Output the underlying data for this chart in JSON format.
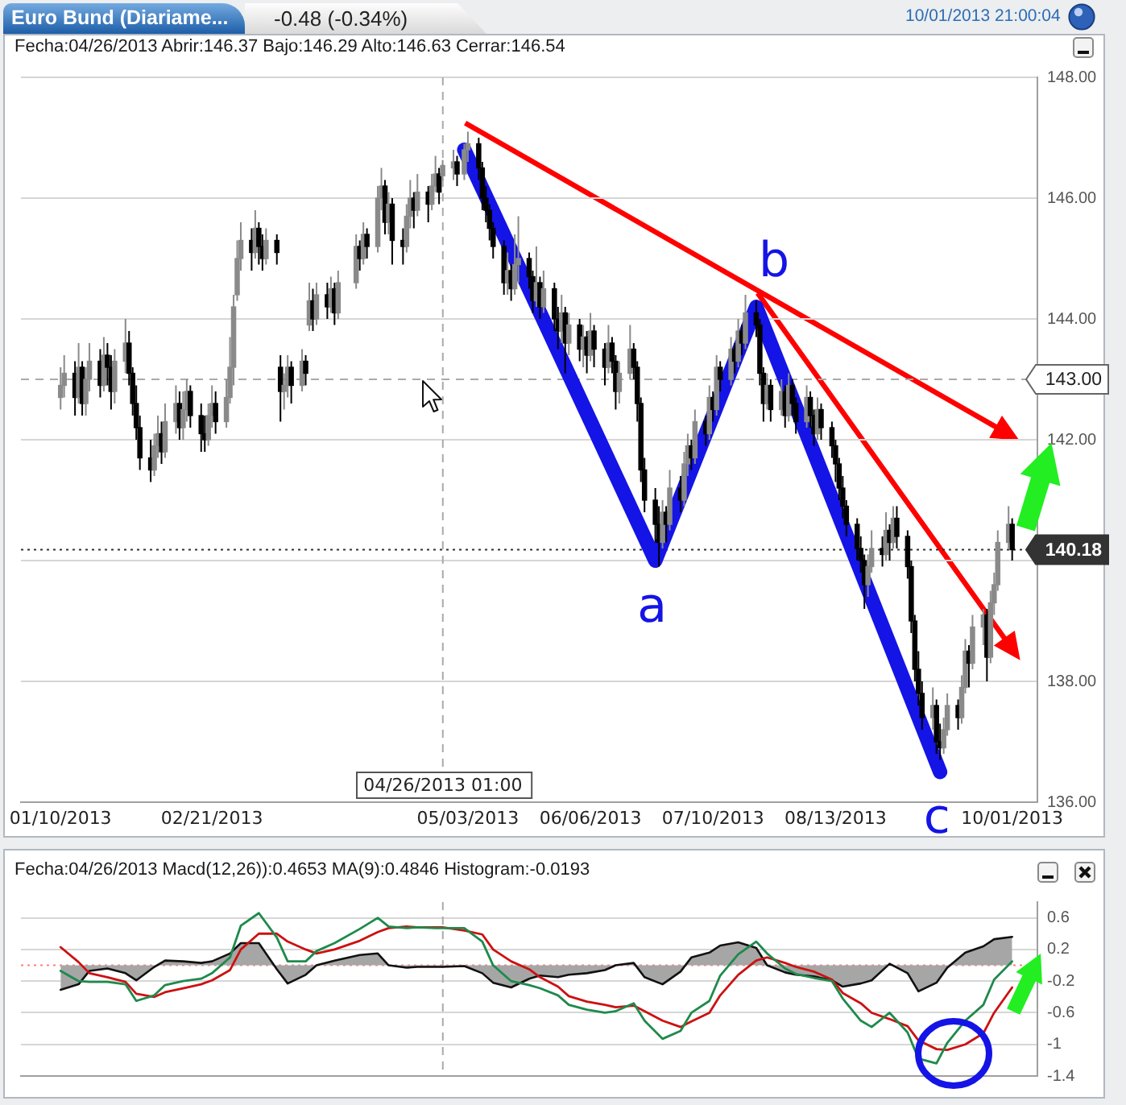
{
  "chart_data": [
    {
      "type": "candlestick",
      "title": "Euro Bund (Diariame...",
      "subtitle": "Fecha:04/26/2013 Abrir:146.37 Bajo:146.29 Alto:146.63 Cerrar:146.54",
      "annotations": [
        "-0.48 (-0.34%)",
        "10/01/2013 21:00:04",
        {
          "text": "a",
          "x": "2013-06-24",
          "y": 140.0
        },
        {
          "text": "b",
          "x": "2013-07-22",
          "y": 144.2
        },
        {
          "text": "c",
          "x": "2013-09-11",
          "y": 136.5
        }
      ],
      "x": [
        "2013-01-10",
        "2013-01-11",
        "2013-01-14",
        "2013-01-15",
        "2013-01-16",
        "2013-01-17",
        "2013-01-18",
        "2013-01-21",
        "2013-01-22",
        "2013-01-23",
        "2013-01-24",
        "2013-01-25",
        "2013-01-28",
        "2013-01-29",
        "2013-01-30",
        "2013-01-31",
        "2013-02-01",
        "2013-02-04",
        "2013-02-05",
        "2013-02-06",
        "2013-02-07",
        "2013-02-08",
        "2013-02-11",
        "2013-02-12",
        "2013-02-13",
        "2013-02-14",
        "2013-02-15",
        "2013-02-18",
        "2013-02-19",
        "2013-02-20",
        "2013-02-21",
        "2013-02-22",
        "2013-02-25",
        "2013-02-26",
        "2013-02-27",
        "2013-02-28",
        "2013-03-01",
        "2013-03-04",
        "2013-03-05",
        "2013-03-06",
        "2013-03-07",
        "2013-03-08",
        "2013-03-11",
        "2013-03-12",
        "2013-03-13",
        "2013-03-14",
        "2013-03-15",
        "2013-03-18",
        "2013-03-19",
        "2013-03-20",
        "2013-03-21",
        "2013-03-22",
        "2013-03-25",
        "2013-03-26",
        "2013-03-27",
        "2013-03-28",
        "2013-04-02",
        "2013-04-03",
        "2013-04-04",
        "2013-04-05",
        "2013-04-08",
        "2013-04-09",
        "2013-04-10",
        "2013-04-11",
        "2013-04-12",
        "2013-04-15",
        "2013-04-16",
        "2013-04-17",
        "2013-04-18",
        "2013-04-19",
        "2013-04-22",
        "2013-04-23",
        "2013-04-24",
        "2013-04-25",
        "2013-04-26",
        "2013-04-29",
        "2013-04-30",
        "2013-05-02",
        "2013-05-03",
        "2013-05-06",
        "2013-05-07",
        "2013-05-08",
        "2013-05-09",
        "2013-05-10",
        "2013-05-13",
        "2013-05-14",
        "2013-05-15",
        "2013-05-16",
        "2013-05-17",
        "2013-05-20",
        "2013-05-21",
        "2013-05-22",
        "2013-05-23",
        "2013-05-24",
        "2013-05-27",
        "2013-05-28",
        "2013-05-29",
        "2013-05-30",
        "2013-05-31",
        "2013-06-03",
        "2013-06-04",
        "2013-06-05",
        "2013-06-06",
        "2013-06-07",
        "2013-06-10",
        "2013-06-11",
        "2013-06-12",
        "2013-06-13",
        "2013-06-14",
        "2013-06-17",
        "2013-06-18",
        "2013-06-19",
        "2013-06-20",
        "2013-06-21",
        "2013-06-24",
        "2013-06-25",
        "2013-06-26",
        "2013-06-27",
        "2013-06-28",
        "2013-07-01",
        "2013-07-02",
        "2013-07-03",
        "2013-07-04",
        "2013-07-05",
        "2013-07-08",
        "2013-07-09",
        "2013-07-10",
        "2013-07-11",
        "2013-07-12",
        "2013-07-15",
        "2013-07-16",
        "2013-07-17",
        "2013-07-18",
        "2013-07-19",
        "2013-07-22",
        "2013-07-23",
        "2013-07-24",
        "2013-07-25",
        "2013-07-26",
        "2013-07-29",
        "2013-07-30",
        "2013-07-31",
        "2013-08-01",
        "2013-08-02",
        "2013-08-05",
        "2013-08-06",
        "2013-08-07",
        "2013-08-08",
        "2013-08-09",
        "2013-08-12",
        "2013-08-13",
        "2013-08-14",
        "2013-08-15",
        "2013-08-16",
        "2013-08-19",
        "2013-08-20",
        "2013-08-21",
        "2013-08-22",
        "2013-08-23",
        "2013-08-26",
        "2013-08-27",
        "2013-08-28",
        "2013-08-29",
        "2013-08-30",
        "2013-09-02",
        "2013-09-03",
        "2013-09-04",
        "2013-09-05",
        "2013-09-06",
        "2013-09-09",
        "2013-09-10",
        "2013-09-11",
        "2013-09-12",
        "2013-09-13",
        "2013-09-16",
        "2013-09-17",
        "2013-09-18",
        "2013-09-19",
        "2013-09-20",
        "2013-09-23",
        "2013-09-24",
        "2013-09-25",
        "2013-09-26",
        "2013-09-27",
        "2013-09-30",
        "2013-10-01"
      ],
      "ohlc": [
        [
          142.7,
          143.2,
          142.5,
          142.9
        ],
        [
          142.9,
          143.4,
          142.7,
          143.1
        ],
        [
          143.1,
          143.3,
          142.4,
          142.7
        ],
        [
          142.7,
          143.6,
          142.6,
          143.2
        ],
        [
          143.2,
          143.3,
          142.4,
          142.6
        ],
        [
          142.6,
          143.2,
          142.4,
          143.0
        ],
        [
          143.0,
          143.6,
          142.8,
          143.3
        ],
        [
          143.3,
          143.5,
          142.7,
          142.9
        ],
        [
          142.9,
          143.7,
          142.8,
          143.4
        ],
        [
          143.4,
          143.6,
          142.9,
          143.2
        ],
        [
          143.2,
          143.4,
          142.5,
          142.8
        ],
        [
          142.8,
          143.5,
          142.6,
          143.3
        ],
        [
          143.3,
          144.0,
          143.1,
          143.6
        ],
        [
          143.6,
          143.8,
          142.9,
          143.1
        ],
        [
          143.1,
          143.2,
          142.4,
          142.6
        ],
        [
          142.6,
          142.9,
          142.0,
          142.2
        ],
        [
          142.2,
          142.4,
          141.5,
          141.7
        ],
        [
          141.7,
          142.0,
          141.3,
          141.5
        ],
        [
          141.5,
          142.1,
          141.4,
          141.9
        ],
        [
          141.9,
          142.4,
          141.7,
          142.1
        ],
        [
          142.1,
          142.3,
          141.6,
          141.8
        ],
        [
          141.8,
          142.6,
          141.7,
          142.3
        ],
        [
          142.3,
          142.9,
          142.1,
          142.6
        ],
        [
          142.6,
          142.8,
          142.0,
          142.2
        ],
        [
          142.2,
          142.8,
          142.0,
          142.5
        ],
        [
          142.5,
          143.0,
          142.3,
          142.8
        ],
        [
          142.8,
          142.9,
          142.2,
          142.4
        ],
        [
          142.4,
          142.6,
          141.8,
          142.1
        ],
        [
          142.1,
          142.4,
          141.8,
          142.0
        ],
        [
          142.0,
          142.6,
          141.9,
          142.4
        ],
        [
          142.4,
          142.9,
          142.2,
          142.6
        ],
        [
          142.6,
          142.8,
          142.1,
          142.3
        ],
        [
          142.3,
          143.0,
          142.2,
          142.7
        ],
        [
          142.7,
          143.7,
          142.6,
          143.2
        ],
        [
          143.2,
          144.4,
          142.9,
          144.2
        ],
        [
          144.4,
          145.3,
          144.3,
          145.0
        ],
        [
          145.0,
          145.6,
          144.8,
          145.3
        ],
        [
          145.3,
          145.5,
          144.8,
          145.1
        ],
        [
          145.1,
          145.8,
          145.0,
          145.5
        ],
        [
          145.5,
          145.6,
          144.9,
          145.2
        ],
        [
          145.2,
          145.4,
          144.8,
          145.0
        ],
        [
          145.0,
          145.5,
          144.9,
          145.3
        ],
        [
          145.3,
          145.4,
          144.9,
          145.1
        ],
        [
          143.2,
          143.4,
          142.3,
          142.8
        ],
        [
          142.8,
          143.1,
          142.5,
          142.9
        ],
        [
          142.9,
          143.4,
          142.7,
          143.2
        ],
        [
          143.2,
          143.3,
          142.6,
          142.9
        ],
        [
          142.9,
          143.5,
          142.8,
          143.3
        ],
        [
          143.3,
          143.4,
          142.9,
          143.1
        ],
        [
          143.9,
          144.6,
          143.8,
          144.3
        ],
        [
          144.3,
          144.5,
          143.8,
          144.0
        ],
        [
          144.0,
          144.6,
          143.9,
          144.4
        ],
        [
          144.4,
          144.6,
          144.0,
          144.2
        ],
        [
          144.2,
          144.7,
          144.1,
          144.5
        ],
        [
          144.5,
          144.6,
          143.9,
          144.1
        ],
        [
          144.1,
          144.8,
          144.0,
          144.6
        ],
        [
          144.6,
          145.4,
          144.5,
          145.2
        ],
        [
          145.2,
          145.3,
          144.8,
          145.0
        ],
        [
          145.0,
          145.6,
          144.9,
          145.4
        ],
        [
          145.4,
          145.5,
          145.0,
          145.2
        ],
        [
          145.2,
          146.2,
          145.1,
          146.0
        ],
        [
          146.0,
          146.5,
          145.8,
          146.2
        ],
        [
          146.2,
          146.3,
          145.4,
          145.6
        ],
        [
          145.6,
          146.1,
          145.4,
          145.9
        ],
        [
          145.9,
          146.0,
          144.9,
          145.3
        ],
        [
          145.3,
          145.5,
          144.9,
          145.2
        ],
        [
          145.2,
          145.9,
          145.1,
          145.7
        ],
        [
          145.7,
          146.3,
          145.5,
          146.0
        ],
        [
          146.0,
          146.1,
          145.5,
          145.8
        ],
        [
          145.8,
          146.4,
          145.7,
          146.1
        ],
        [
          146.1,
          146.2,
          145.6,
          145.9
        ],
        [
          145.9,
          146.4,
          145.8,
          146.2
        ],
        [
          146.2,
          146.7,
          146.1,
          146.4
        ],
        [
          146.4,
          146.5,
          145.9,
          146.1
        ],
        [
          146.37,
          146.63,
          146.29,
          146.54
        ],
        [
          146.5,
          146.8,
          146.3,
          146.6
        ],
        [
          146.6,
          146.7,
          146.2,
          146.4
        ],
        [
          146.4,
          146.9,
          146.3,
          146.8
        ],
        [
          146.8,
          147.1,
          146.6,
          146.9
        ],
        [
          146.9,
          147.0,
          146.3,
          146.5
        ],
        [
          146.5,
          146.6,
          145.8,
          146.0
        ],
        [
          146.0,
          146.2,
          145.6,
          145.8
        ],
        [
          145.8,
          145.9,
          145.3,
          145.5
        ],
        [
          145.5,
          145.6,
          145.0,
          145.2
        ],
        [
          145.2,
          145.3,
          144.4,
          144.6
        ],
        [
          144.6,
          145.1,
          144.4,
          144.8
        ],
        [
          144.8,
          144.9,
          144.3,
          144.5
        ],
        [
          144.5,
          145.4,
          144.4,
          144.9
        ],
        [
          144.9,
          145.7,
          144.6,
          145.0
        ],
        [
          145.0,
          145.1,
          144.5,
          144.7
        ],
        [
          144.7,
          144.8,
          144.1,
          144.3
        ],
        [
          144.3,
          145.2,
          144.2,
          144.6
        ],
        [
          144.6,
          144.7,
          144.0,
          144.2
        ],
        [
          144.2,
          144.8,
          144.1,
          144.5
        ],
        [
          144.5,
          144.6,
          143.8,
          144.0
        ],
        [
          144.0,
          144.2,
          143.5,
          143.8
        ],
        [
          143.8,
          144.4,
          143.6,
          144.1
        ],
        [
          144.1,
          144.2,
          143.1,
          143.6
        ],
        [
          143.6,
          144.1,
          143.4,
          143.9
        ],
        [
          143.9,
          144.0,
          143.3,
          143.5
        ],
        [
          143.5,
          143.9,
          143.2,
          143.7
        ],
        [
          143.7,
          143.8,
          143.1,
          143.4
        ],
        [
          143.4,
          144.1,
          143.3,
          143.8
        ],
        [
          143.8,
          143.9,
          143.2,
          143.5
        ],
        [
          143.5,
          143.6,
          142.9,
          143.2
        ],
        [
          143.2,
          143.9,
          143.1,
          143.6
        ],
        [
          143.6,
          143.7,
          143.1,
          143.3
        ],
        [
          143.3,
          143.4,
          142.5,
          142.8
        ],
        [
          142.8,
          143.3,
          142.6,
          143.1
        ],
        [
          143.1,
          143.9,
          143.0,
          143.5
        ],
        [
          143.5,
          143.6,
          143.0,
          143.2
        ],
        [
          143.2,
          143.3,
          142.3,
          142.6
        ],
        [
          142.6,
          142.7,
          141.3,
          141.5
        ],
        [
          141.5,
          141.7,
          140.8,
          141.0
        ],
        [
          141.0,
          141.2,
          140.3,
          140.6
        ],
        [
          140.6,
          140.9,
          139.9,
          140.3
        ],
        [
          140.3,
          141.0,
          140.2,
          140.8
        ],
        [
          140.8,
          140.9,
          140.3,
          140.6
        ],
        [
          140.6,
          141.5,
          140.5,
          141.2
        ],
        [
          141.2,
          141.4,
          140.8,
          141.0
        ],
        [
          141.0,
          141.8,
          140.9,
          141.6
        ],
        [
          141.6,
          142.1,
          141.4,
          141.9
        ],
        [
          141.9,
          142.0,
          141.5,
          141.7
        ],
        [
          141.7,
          142.5,
          141.6,
          142.3
        ],
        [
          142.3,
          142.4,
          141.9,
          142.1
        ],
        [
          142.1,
          142.9,
          142.0,
          142.7
        ],
        [
          142.7,
          142.8,
          142.3,
          142.5
        ],
        [
          142.5,
          143.4,
          142.4,
          143.2
        ],
        [
          143.2,
          143.3,
          142.8,
          143.0
        ],
        [
          143.0,
          143.7,
          142.9,
          143.5
        ],
        [
          143.5,
          143.6,
          143.1,
          143.3
        ],
        [
          143.3,
          144.0,
          143.2,
          143.8
        ],
        [
          143.8,
          143.9,
          143.4,
          143.6
        ],
        [
          143.6,
          144.4,
          143.5,
          144.1
        ],
        [
          144.1,
          144.3,
          143.7,
          143.9
        ],
        [
          143.9,
          144.0,
          142.9,
          143.1
        ],
        [
          143.1,
          143.2,
          142.3,
          142.6
        ],
        [
          142.6,
          143.1,
          142.5,
          142.9
        ],
        [
          142.9,
          143.0,
          142.3,
          142.5
        ],
        [
          142.5,
          143.0,
          142.4,
          142.8
        ],
        [
          142.8,
          142.9,
          142.2,
          142.4
        ],
        [
          142.4,
          143.1,
          142.3,
          142.9
        ],
        [
          142.9,
          143.0,
          142.4,
          142.6
        ],
        [
          142.6,
          142.7,
          142.1,
          142.3
        ],
        [
          142.3,
          142.9,
          142.2,
          142.7
        ],
        [
          142.7,
          142.8,
          142.2,
          142.4
        ],
        [
          142.4,
          142.5,
          141.9,
          142.1
        ],
        [
          142.1,
          142.7,
          142.0,
          142.5
        ],
        [
          142.5,
          142.6,
          142.0,
          142.2
        ],
        [
          142.2,
          142.3,
          141.7,
          141.9
        ],
        [
          141.9,
          142.0,
          141.3,
          141.6
        ],
        [
          141.6,
          141.7,
          141.0,
          141.2
        ],
        [
          141.2,
          141.4,
          140.7,
          140.9
        ],
        [
          140.9,
          141.0,
          140.4,
          140.6
        ],
        [
          140.6,
          140.7,
          140.0,
          140.2
        ],
        [
          140.2,
          140.4,
          139.8,
          140.0
        ],
        [
          140.0,
          140.1,
          139.2,
          139.6
        ],
        [
          139.6,
          140.1,
          139.4,
          139.9
        ],
        [
          139.9,
          140.5,
          139.8,
          140.2
        ],
        [
          140.2,
          140.4,
          139.9,
          140.1
        ],
        [
          140.1,
          140.8,
          140.0,
          140.5
        ],
        [
          140.5,
          140.6,
          140.0,
          140.3
        ],
        [
          140.3,
          140.9,
          140.2,
          140.7
        ],
        [
          140.7,
          140.9,
          140.2,
          140.4
        ],
        [
          140.4,
          140.5,
          139.7,
          139.9
        ],
        [
          139.9,
          140.0,
          138.8,
          139.0
        ],
        [
          139.0,
          139.1,
          138.0,
          138.2
        ],
        [
          138.2,
          138.5,
          137.6,
          137.8
        ],
        [
          137.8,
          138.0,
          137.2,
          137.4
        ],
        [
          137.4,
          137.9,
          137.2,
          137.6
        ],
        [
          137.6,
          137.7,
          136.8,
          137.0
        ],
        [
          137.0,
          137.3,
          136.7,
          136.9
        ],
        [
          136.9,
          137.4,
          136.8,
          137.2
        ],
        [
          137.2,
          137.8,
          137.1,
          137.6
        ],
        [
          137.6,
          137.7,
          137.2,
          137.4
        ],
        [
          137.4,
          138.1,
          137.3,
          137.9
        ],
        [
          137.9,
          138.7,
          137.8,
          138.5
        ],
        [
          138.5,
          138.6,
          137.9,
          138.3
        ],
        [
          138.3,
          139.1,
          138.2,
          138.9
        ],
        [
          138.9,
          139.2,
          138.6,
          139.1
        ],
        [
          139.1,
          139.2,
          138.0,
          138.4
        ],
        [
          138.4,
          139.5,
          138.3,
          139.3
        ],
        [
          139.3,
          139.8,
          139.1,
          139.6
        ],
        [
          139.6,
          140.5,
          139.5,
          140.3
        ],
        [
          140.3,
          140.9,
          140.2,
          140.6
        ],
        [
          140.6,
          140.7,
          140.0,
          140.18
        ]
      ],
      "colors": [
        "#8a8a8a",
        "#8a8a8a",
        "#000000",
        "#8a8a8a",
        "#000000",
        "#8a8a8a",
        "#8a8a8a",
        "#000000",
        "#8a8a8a",
        "#000000",
        "#000000",
        "#8a8a8a",
        "#8a8a8a",
        "#000000",
        "#000000",
        "#000000",
        "#000000",
        "#000000",
        "#8a8a8a",
        "#8a8a8a",
        "#000000",
        "#8a8a8a",
        "#8a8a8a",
        "#000000",
        "#8a8a8a",
        "#8a8a8a",
        "#000000",
        "#000000",
        "#000000",
        "#8a8a8a",
        "#8a8a8a",
        "#000000",
        "#8a8a8a",
        "#8a8a8a",
        "#8a8a8a",
        "#8a8a8a",
        "#8a8a8a",
        "#000000",
        "#8a8a8a",
        "#000000",
        "#000000",
        "#8a8a8a",
        "#000000",
        "#000000",
        "#8a8a8a",
        "#8a8a8a",
        "#000000",
        "#8a8a8a",
        "#000000",
        "#8a8a8a",
        "#000000",
        "#8a8a8a",
        "#000000",
        "#8a8a8a",
        "#000000",
        "#8a8a8a",
        "#8a8a8a",
        "#000000",
        "#8a8a8a",
        "#000000",
        "#8a8a8a",
        "#8a8a8a",
        "#000000",
        "#8a8a8a",
        "#000000",
        "#000000",
        "#8a8a8a",
        "#8a8a8a",
        "#000000",
        "#8a8a8a",
        "#000000",
        "#8a8a8a",
        "#8a8a8a",
        "#000000",
        "#8a8a8a",
        "#8a8a8a",
        "#000000",
        "#8a8a8a",
        "#8a8a8a",
        "#000000",
        "#000000",
        "#000000",
        "#000000",
        "#000000",
        "#000000",
        "#8a8a8a",
        "#000000",
        "#8a8a8a",
        "#8a8a8a",
        "#000000",
        "#000000",
        "#8a8a8a",
        "#000000",
        "#8a8a8a",
        "#000000",
        "#000000",
        "#8a8a8a",
        "#000000",
        "#8a8a8a",
        "#000000",
        "#8a8a8a",
        "#000000",
        "#8a8a8a",
        "#000000",
        "#000000",
        "#8a8a8a",
        "#000000",
        "#000000",
        "#8a8a8a",
        "#8a8a8a",
        "#000000",
        "#000000",
        "#000000",
        "#000000",
        "#000000",
        "#000000",
        "#8a8a8a",
        "#000000",
        "#8a8a8a",
        "#000000",
        "#8a8a8a",
        "#8a8a8a",
        "#000000",
        "#8a8a8a",
        "#000000",
        "#8a8a8a",
        "#000000",
        "#8a8a8a",
        "#000000",
        "#8a8a8a",
        "#000000",
        "#8a8a8a",
        "#000000",
        "#8a8a8a",
        "#000000",
        "#000000",
        "#000000",
        "#8a8a8a",
        "#000000",
        "#8a8a8a",
        "#000000",
        "#8a8a8a",
        "#000000",
        "#000000",
        "#8a8a8a",
        "#000000",
        "#000000",
        "#8a8a8a",
        "#000000",
        "#000000",
        "#000000",
        "#000000",
        "#000000",
        "#000000",
        "#000000",
        "#000000",
        "#000000",
        "#8a8a8a",
        "#8a8a8a",
        "#000000",
        "#8a8a8a",
        "#000000",
        "#8a8a8a",
        "#000000",
        "#000000",
        "#000000",
        "#000000",
        "#000000",
        "#000000",
        "#8a8a8a",
        "#000000",
        "#000000",
        "#8a8a8a",
        "#8a8a8a",
        "#000000",
        "#8a8a8a",
        "#8a8a8a",
        "#000000",
        "#8a8a8a",
        "#8a8a8a",
        "#000000",
        "#8a8a8a",
        "#8a8a8a",
        "#8a8a8a",
        "#8a8a8a",
        "#000000"
      ],
      "series": [
        {
          "type": "line",
          "color": "#1414e6",
          "x": [
            "2013-05-02",
            "2013-06-24",
            "2013-07-22",
            "2013-09-11"
          ],
          "values": [
            146.8,
            140.0,
            144.2,
            136.5
          ]
        }
      ],
      "xlim": [
        "2012-12-30",
        "2013-10-08"
      ],
      "xticks": [
        {
          "value": "2013-01-10",
          "label": "01/10/2013"
        },
        {
          "value": "2013-02-21",
          "label": "02/21/2013"
        },
        {
          "value": "2013-05-03",
          "label": "05/03/2013"
        },
        {
          "value": "2013-06-06",
          "label": "06/06/2013"
        },
        {
          "value": "2013-07-10",
          "label": "07/10/2013"
        },
        {
          "value": "2013-08-13",
          "label": "08/13/2013"
        },
        {
          "value": "2013-10-01",
          "label": "10/01/2013"
        }
      ],
      "ylim": [
        136,
        148
      ],
      "yticks": [
        {
          "value": 136,
          "label": "136.00"
        },
        {
          "value": 138,
          "label": "138.00"
        },
        {
          "value": 140,
          "label": null
        },
        {
          "value": 142,
          "label": "142.00"
        },
        {
          "value": 144,
          "label": "144.00"
        },
        {
          "value": 146,
          "label": "146.00"
        },
        {
          "value": 148,
          "label": "148.00"
        }
      ],
      "ref_lines": [
        {
          "axis": "y",
          "value": 143,
          "label": "143.00",
          "line_style": "dashed",
          "color": "#aaaaaa"
        },
        {
          "axis": "y",
          "value": 140.18,
          "label": "140.18",
          "line_style": "dotted",
          "color": "#333333"
        },
        {
          "axis": "x",
          "value": "2013-04-26T01:00",
          "label": "04/26/2013 01:00",
          "line_style": "dashed",
          "color": "#aaaaaa"
        }
      ],
      "grid": "y"
    },
    {
      "type": "line",
      "subtitle": "Fecha:04/26/2013 Macd(12,26)):0.4653 MA(9):0.4846 Histogram:-0.0193",
      "x": [
        "2013-01-10",
        "2013-01-15",
        "2013-01-18",
        "2013-01-23",
        "2013-01-28",
        "2013-01-31",
        "2013-02-05",
        "2013-02-08",
        "2013-02-13",
        "2013-02-18",
        "2013-02-21",
        "2013-02-26",
        "2013-03-01",
        "2013-03-06",
        "2013-03-11",
        "2013-03-14",
        "2013-03-19",
        "2013-03-22",
        "2013-03-27",
        "2013-04-03",
        "2013-04-08",
        "2013-04-11",
        "2013-04-16",
        "2013-04-19",
        "2013-04-24",
        "2013-04-26",
        "2013-05-02",
        "2013-05-07",
        "2013-05-10",
        "2013-05-15",
        "2013-05-20",
        "2013-05-23",
        "2013-05-28",
        "2013-05-31",
        "2013-06-05",
        "2013-06-10",
        "2013-06-13",
        "2013-06-18",
        "2013-06-21",
        "2013-06-26",
        "2013-07-01",
        "2013-07-04",
        "2013-07-09",
        "2013-07-12",
        "2013-07-17",
        "2013-07-22",
        "2013-07-25",
        "2013-07-30",
        "2013-08-02",
        "2013-08-07",
        "2013-08-12",
        "2013-08-15",
        "2013-08-20",
        "2013-08-23",
        "2013-08-28",
        "2013-09-02",
        "2013-09-05",
        "2013-09-10",
        "2013-09-13",
        "2013-09-18",
        "2013-09-23",
        "2013-09-26",
        "2013-10-01"
      ],
      "series": [
        {
          "type": "area",
          "color": "#a6a6a6",
          "values": [
            -0.31,
            -0.24,
            -0.07,
            -0.04,
            -0.1,
            -0.19,
            -0.02,
            0.06,
            0.05,
            0.03,
            0.05,
            0.15,
            0.28,
            0.28,
            -0.05,
            -0.23,
            -0.12,
            0.0,
            0.06,
            0.13,
            0.15,
            0.0,
            -0.03,
            -0.02,
            -0.02,
            -0.02,
            -0.01,
            -0.1,
            -0.22,
            -0.28,
            -0.17,
            -0.13,
            -0.15,
            -0.12,
            -0.1,
            -0.06,
            0.0,
            0.03,
            -0.15,
            -0.24,
            -0.08,
            0.1,
            0.16,
            0.25,
            0.29,
            0.22,
            0.0,
            -0.09,
            -0.12,
            -0.14,
            -0.19,
            -0.27,
            -0.23,
            -0.19,
            0.02,
            -0.1,
            -0.33,
            -0.22,
            -0.03,
            0.16,
            0.24,
            0.33,
            0.36
          ]
        },
        {
          "type": "line",
          "color": "#1e8a4c",
          "values": [
            -0.07,
            -0.2,
            -0.21,
            -0.21,
            -0.24,
            -0.45,
            -0.38,
            -0.25,
            -0.2,
            -0.17,
            -0.1,
            0.1,
            0.5,
            0.66,
            0.35,
            0.05,
            0.05,
            0.18,
            0.28,
            0.46,
            0.6,
            0.49,
            0.47,
            0.48,
            0.47,
            0.47,
            0.47,
            0.3,
            0.0,
            -0.2,
            -0.25,
            -0.29,
            -0.38,
            -0.5,
            -0.56,
            -0.6,
            -0.58,
            -0.48,
            -0.7,
            -0.93,
            -0.83,
            -0.6,
            -0.45,
            -0.13,
            0.14,
            0.3,
            0.15,
            -0.04,
            -0.11,
            -0.16,
            -0.2,
            -0.42,
            -0.7,
            -0.78,
            -0.6,
            -0.85,
            -1.18,
            -1.24,
            -0.98,
            -0.7,
            -0.5,
            -0.18,
            0.05
          ]
        },
        {
          "type": "line",
          "color": "#cc1111",
          "values": [
            0.23,
            0.04,
            -0.1,
            -0.15,
            -0.21,
            -0.36,
            -0.4,
            -0.34,
            -0.29,
            -0.24,
            -0.19,
            -0.06,
            0.2,
            0.4,
            0.4,
            0.3,
            0.2,
            0.15,
            0.2,
            0.31,
            0.42,
            0.47,
            0.49,
            0.48,
            0.48,
            0.48,
            0.44,
            0.39,
            0.2,
            0.05,
            -0.05,
            -0.15,
            -0.27,
            -0.39,
            -0.46,
            -0.5,
            -0.53,
            -0.51,
            -0.58,
            -0.7,
            -0.78,
            -0.71,
            -0.6,
            -0.38,
            -0.12,
            0.06,
            0.1,
            0.03,
            -0.02,
            -0.08,
            -0.18,
            -0.35,
            -0.48,
            -0.6,
            -0.68,
            -0.77,
            -0.95,
            -1.06,
            -1.07,
            -1.0,
            -0.86,
            -0.6,
            -0.28
          ]
        }
      ],
      "xlim": [
        "2012-12-30",
        "2013-10-08"
      ],
      "ylim": [
        -1.4,
        0.8
      ],
      "yticks": [
        -1.4,
        -1,
        -0.6,
        -0.2,
        0.2,
        0.6
      ],
      "ref_lines": [
        {
          "axis": "y",
          "value": 0,
          "line_style": "dotted",
          "color": "#ff8080"
        },
        {
          "axis": "x",
          "value": "2013-04-26T01:00",
          "line_style": "dashed",
          "color": "#aaaaaa"
        }
      ],
      "grid": "y",
      "tick_labels": "y"
    }
  ]
}
